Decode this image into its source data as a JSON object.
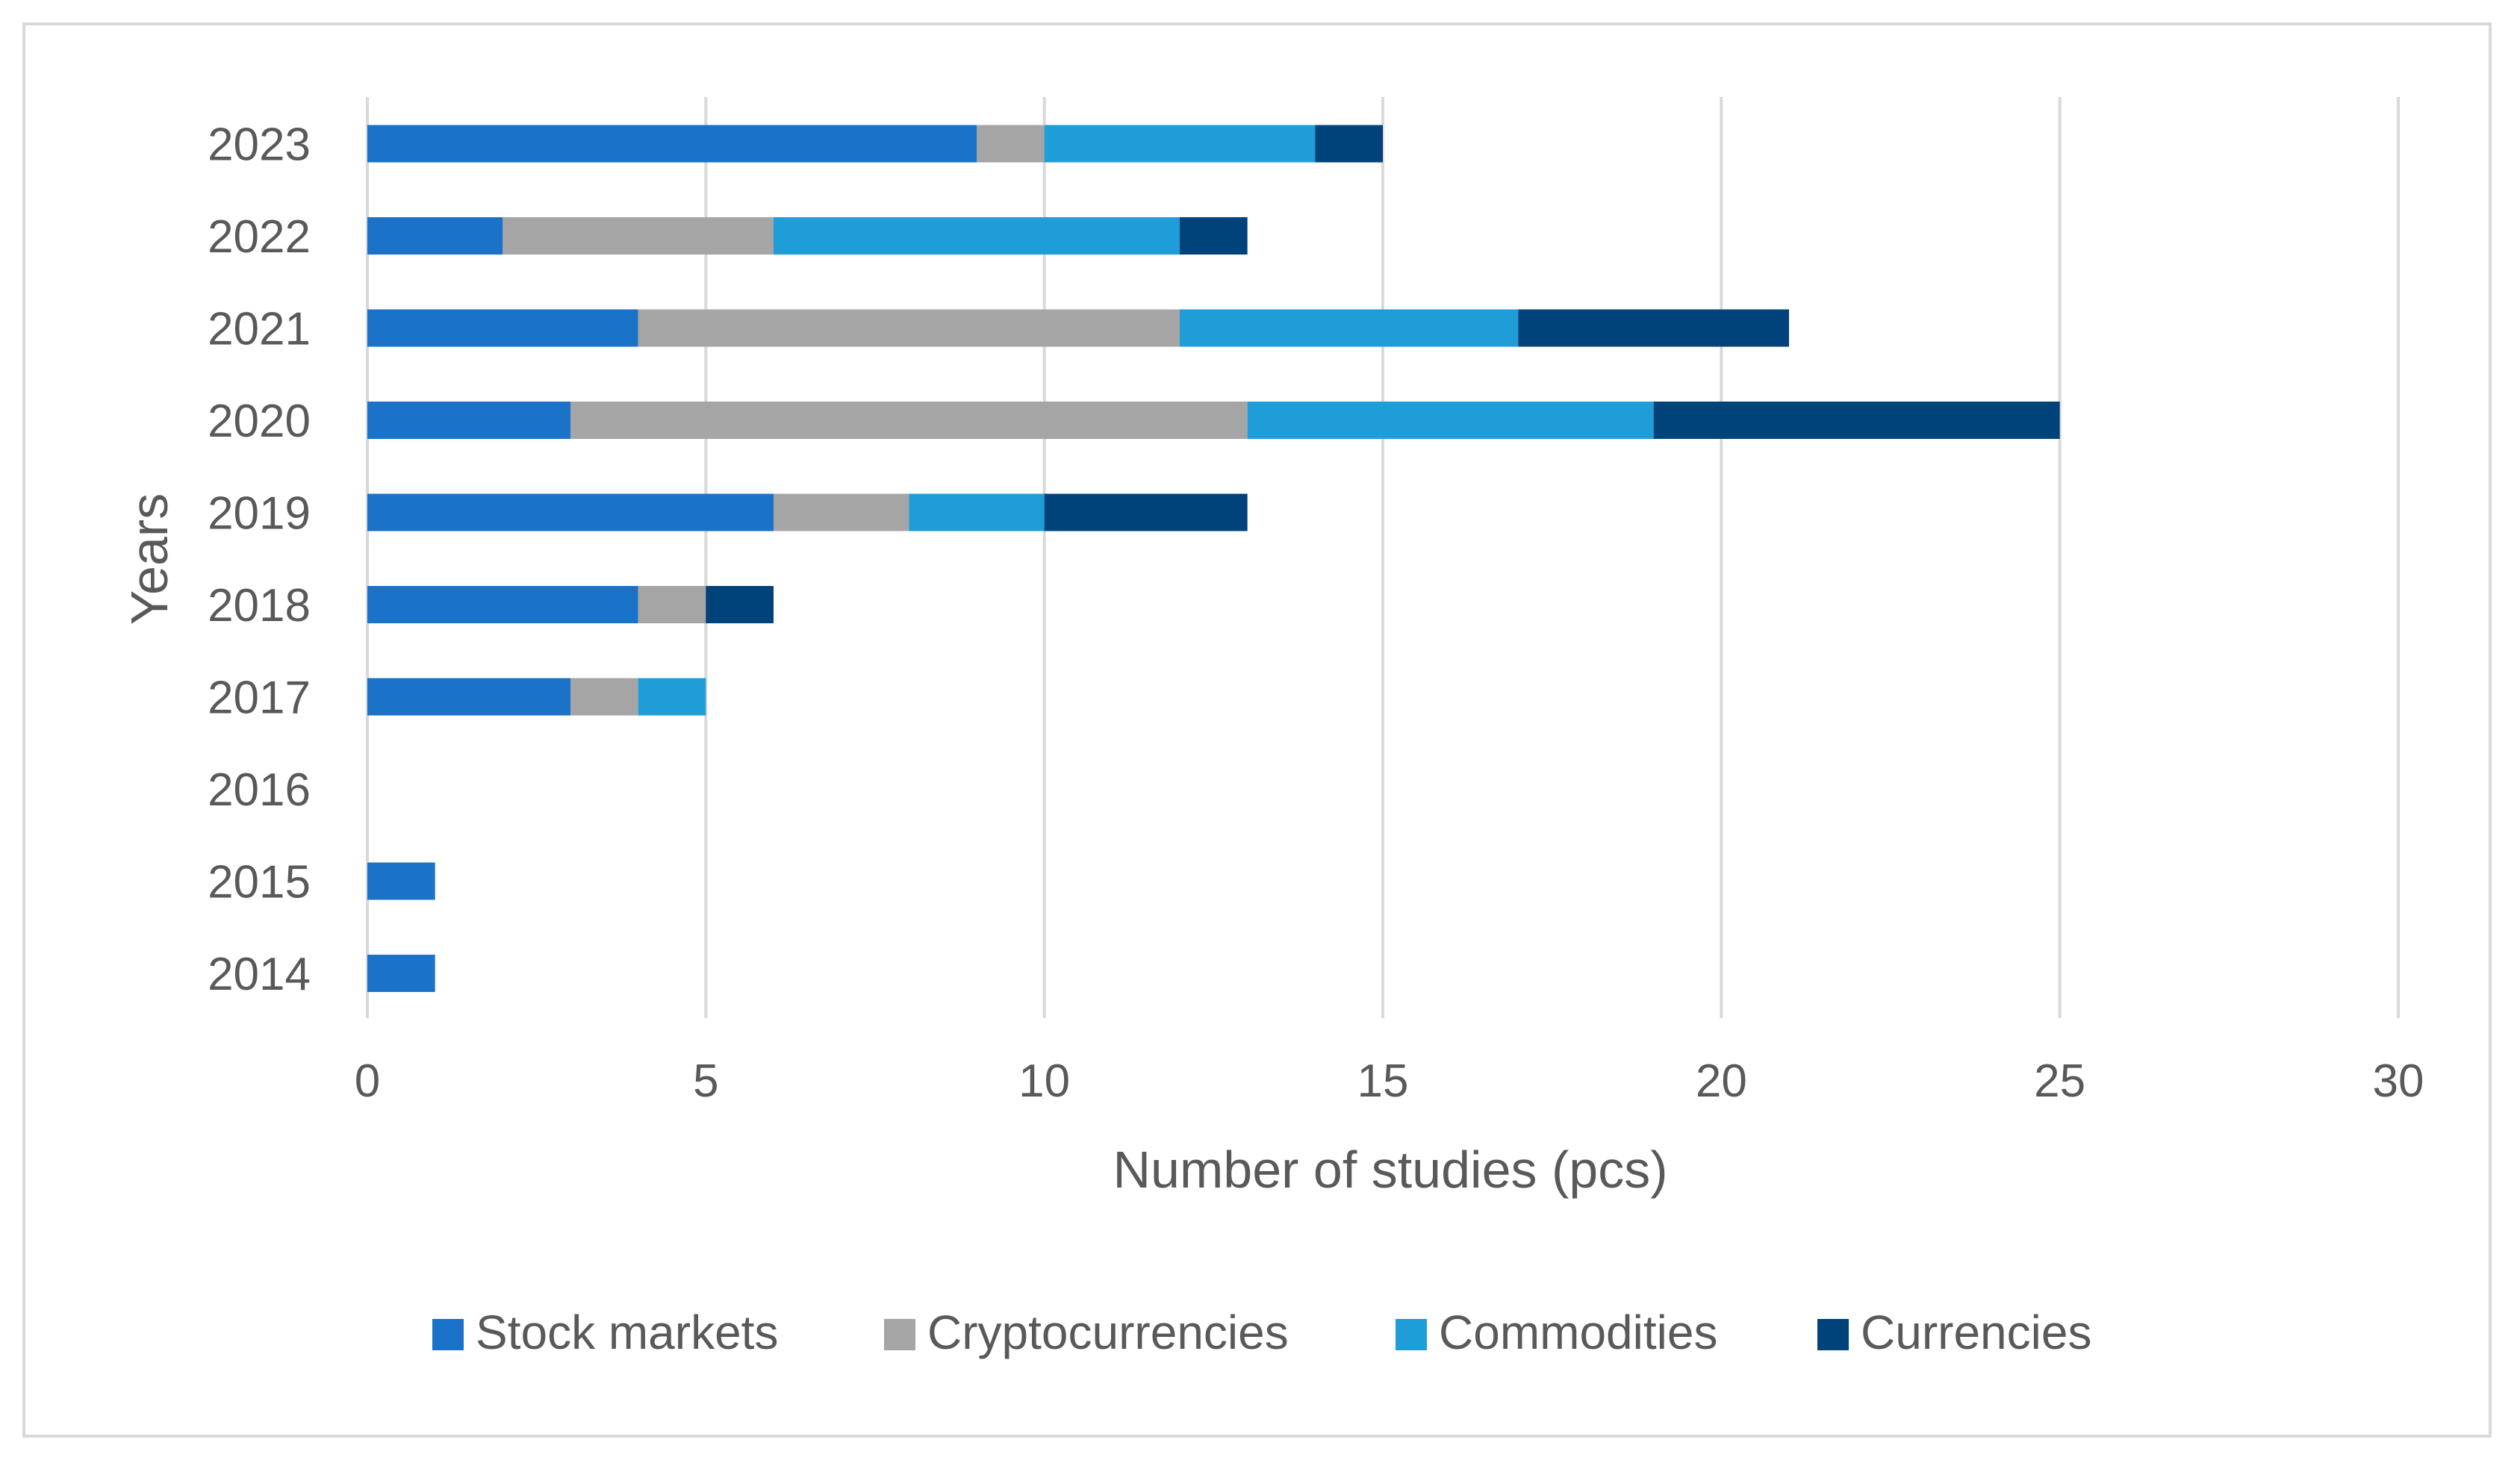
{
  "chart_data": {
    "type": "bar",
    "orientation": "horizontal",
    "stacked": true,
    "title": "",
    "xlabel": "Number of studies (pcs)",
    "ylabel": "Years",
    "xlim": [
      0,
      30
    ],
    "xticks": [
      0,
      5,
      10,
      15,
      20,
      25,
      30
    ],
    "grid": "vertical",
    "legend_position": "bottom",
    "categories": [
      "2014",
      "2015",
      "2016",
      "2017",
      "2018",
      "2019",
      "2020",
      "2021",
      "2022",
      "2023"
    ],
    "series": [
      {
        "name": "Stock markets",
        "color": "#1a72c9",
        "values": [
          1,
          1,
          0,
          3,
          4,
          6,
          3,
          4,
          2,
          9
        ]
      },
      {
        "name": "Cryptocurrencies",
        "color": "#a5a5a5",
        "values": [
          0,
          0,
          0,
          1,
          1,
          2,
          10,
          8,
          4,
          1
        ]
      },
      {
        "name": "Commodities",
        "color": "#1f9dd9",
        "values": [
          0,
          0,
          0,
          1,
          0,
          2,
          6,
          5,
          6,
          4
        ]
      },
      {
        "name": "Currencies",
        "color": "#00427a",
        "values": [
          0,
          0,
          0,
          0,
          1,
          3,
          6,
          4,
          1,
          1
        ]
      }
    ]
  }
}
